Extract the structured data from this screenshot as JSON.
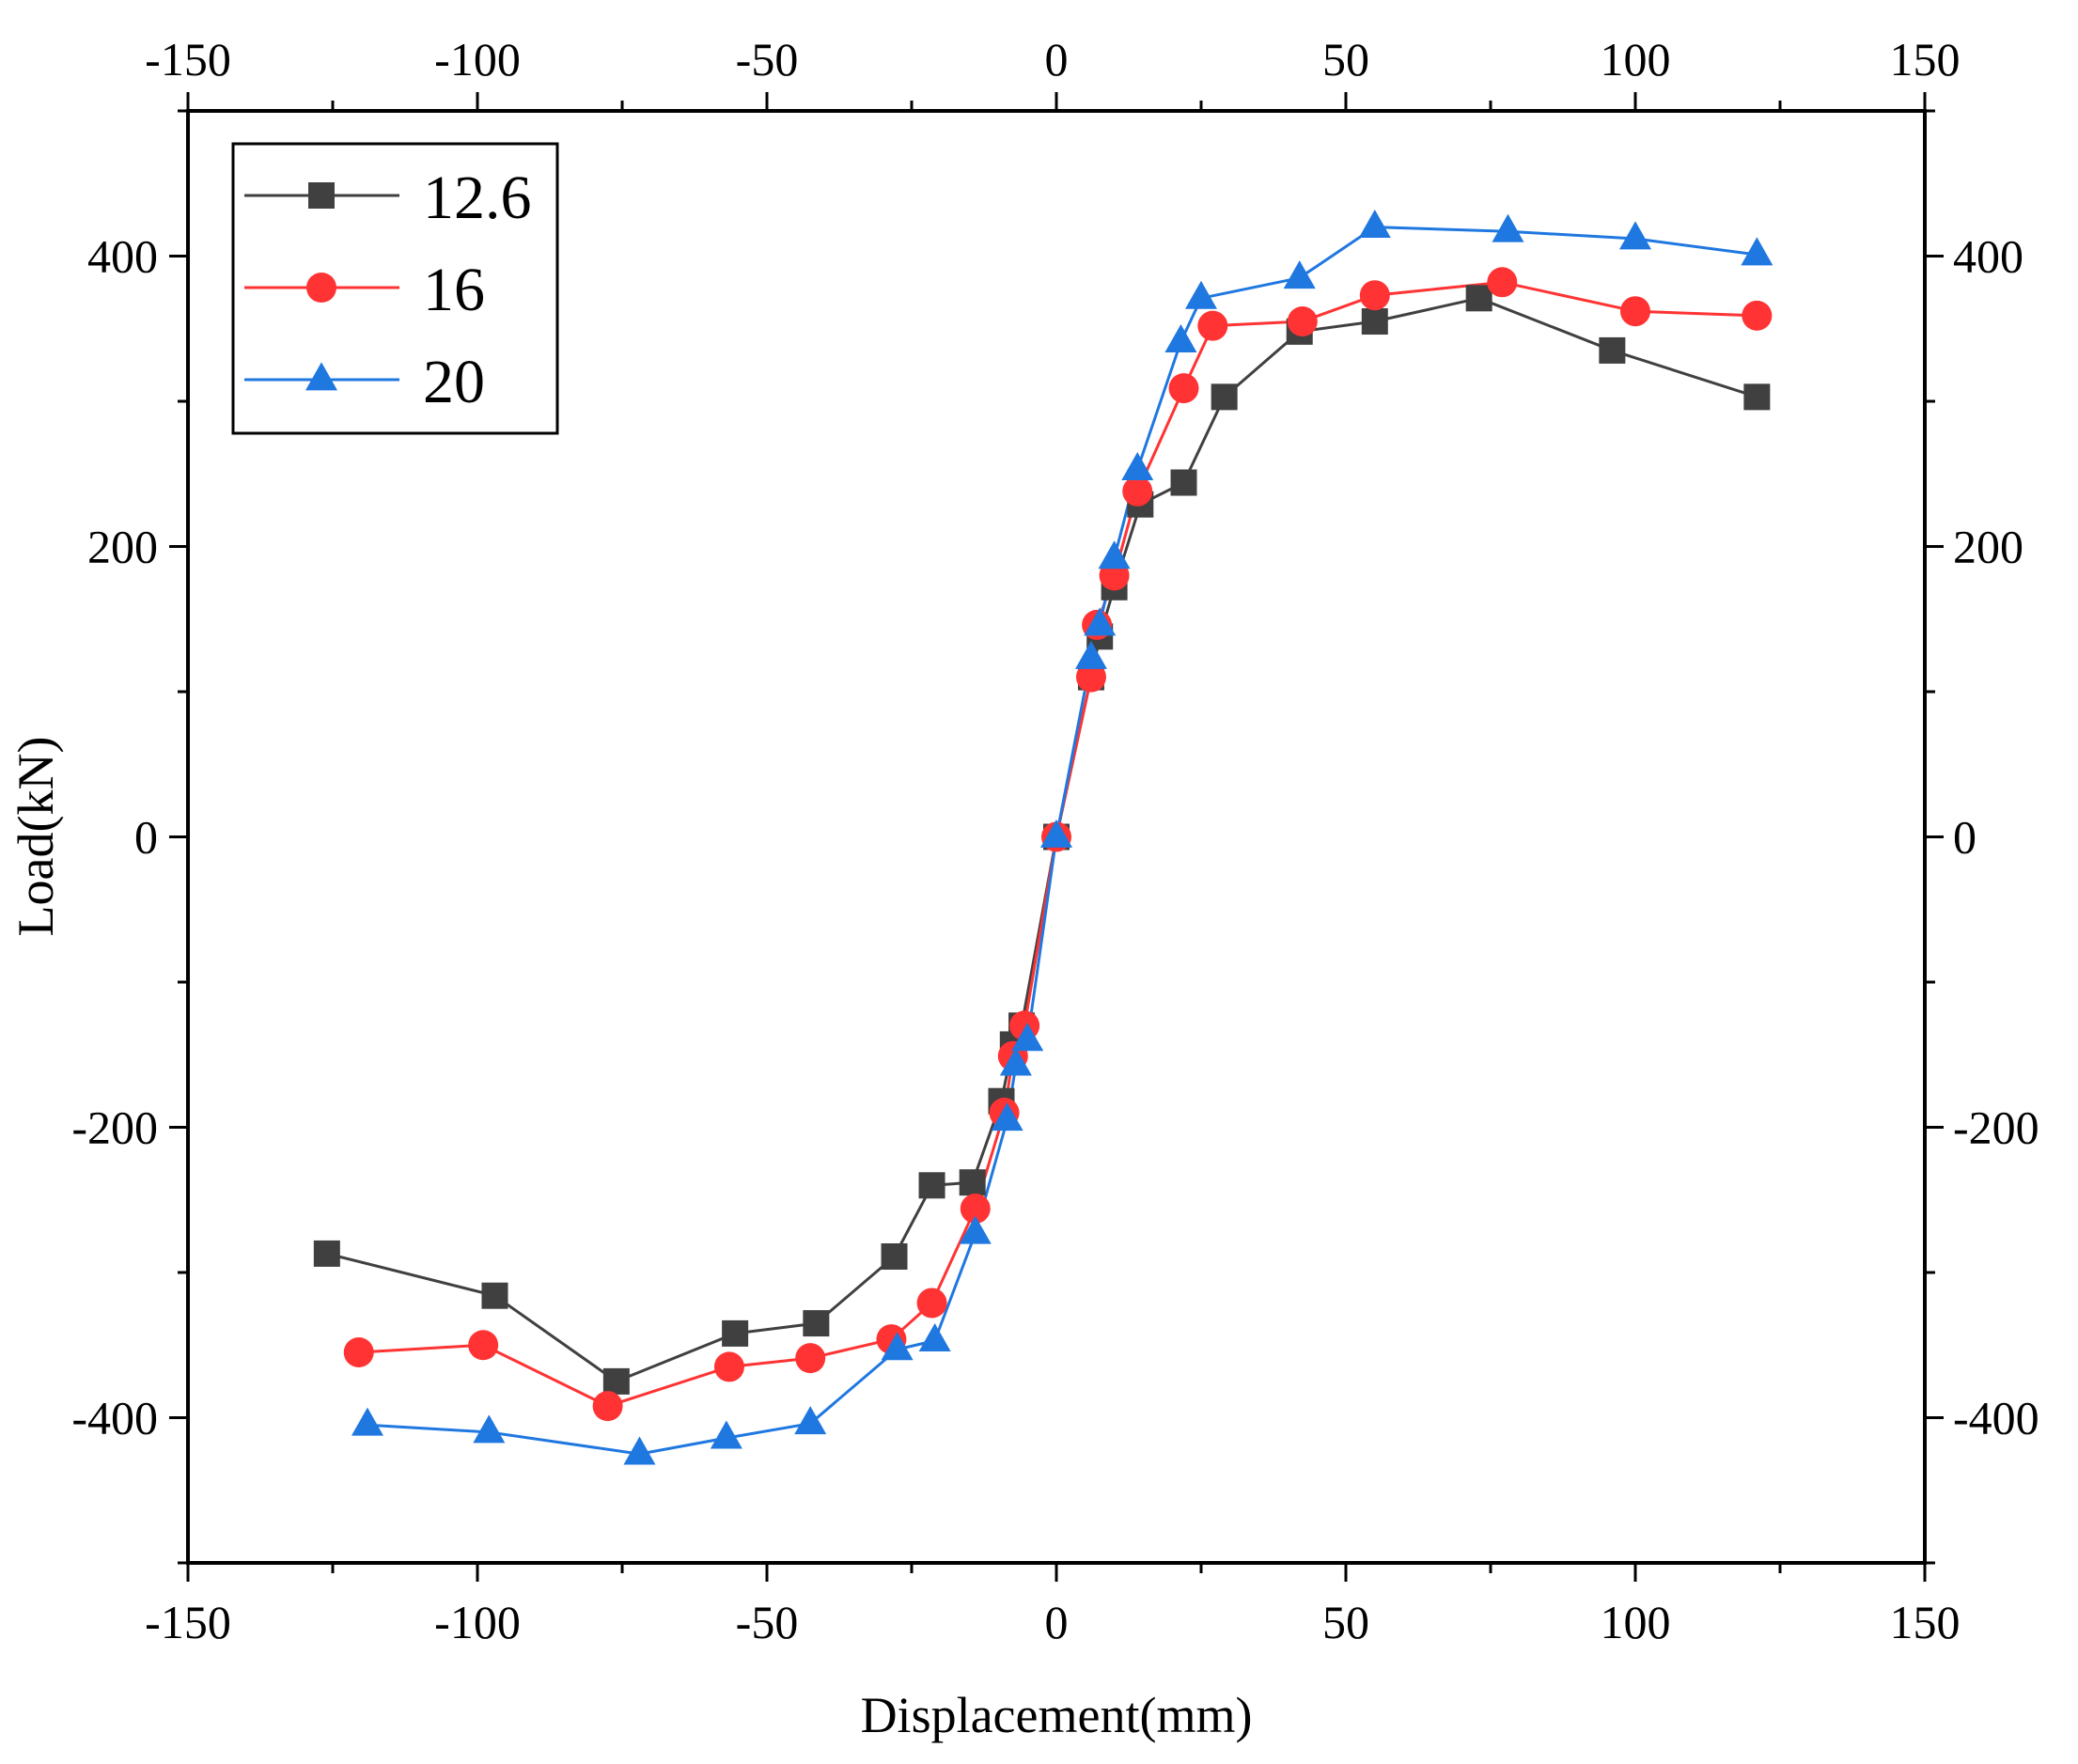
{
  "chart_data": {
    "type": "line",
    "title": "",
    "xlabel": "Displacement(mm)",
    "ylabel": "Load(kN)",
    "xlim": [
      -150,
      150
    ],
    "ylim": [
      -500,
      500
    ],
    "x_ticks": [
      -150,
      -100,
      -50,
      0,
      50,
      100,
      150
    ],
    "y_ticks": [
      -400,
      -200,
      0,
      200,
      400
    ],
    "x_tick_labels": [
      "-150",
      "-100",
      "-50",
      "0",
      "50",
      "100",
      "150"
    ],
    "y_tick_labels": [
      "-400",
      "-200",
      "0",
      "200",
      "400"
    ],
    "grid": false,
    "legend_position": "top-left",
    "series": [
      {
        "name": "12.6",
        "color": "#404040",
        "marker": "square",
        "x": [
          -126,
          -97,
          -76,
          -55.5,
          -41.5,
          -28,
          -21.5,
          -14.5,
          -9.5,
          -7.5,
          -6,
          0,
          6,
          7.5,
          10,
          14.5,
          22,
          29,
          42,
          55,
          73,
          96,
          121
        ],
        "y": [
          -287,
          -316,
          -375,
          -342,
          -335,
          -289,
          -240,
          -238,
          -182,
          -143,
          -130,
          0,
          110,
          138,
          172,
          229,
          244,
          303,
          348,
          355,
          371,
          335,
          303
        ]
      },
      {
        "name": "16",
        "color": "#ff3333",
        "marker": "circle",
        "x": [
          -120.5,
          -99,
          -77.5,
          -56.5,
          -42.5,
          -28.5,
          -21.5,
          -14,
          -9,
          -7.5,
          -5.5,
          0,
          6,
          7,
          10,
          14,
          22,
          27,
          42.5,
          55,
          77,
          100,
          121
        ],
        "y": [
          -355,
          -350,
          -392,
          -365,
          -359,
          -346,
          -321,
          -256,
          -190,
          -151,
          -130,
          0,
          110,
          146,
          180,
          238,
          309,
          352,
          355,
          373,
          382,
          362,
          359
        ]
      },
      {
        "name": "20",
        "color": "#1f77e0",
        "marker": "triangle",
        "x": [
          -119,
          -98,
          -72,
          -57,
          -42.5,
          -27.5,
          -21,
          -14,
          -8.5,
          -7,
          -5,
          0,
          6,
          7.5,
          10,
          14,
          21.5,
          25,
          42,
          55,
          78,
          100,
          121
        ],
        "y": [
          -405,
          -410,
          -425,
          -414,
          -404,
          -353,
          -347,
          -273,
          -195,
          -157,
          -140,
          0,
          123,
          146,
          192,
          253,
          341,
          371,
          385,
          420,
          417,
          412,
          401
        ]
      }
    ]
  }
}
